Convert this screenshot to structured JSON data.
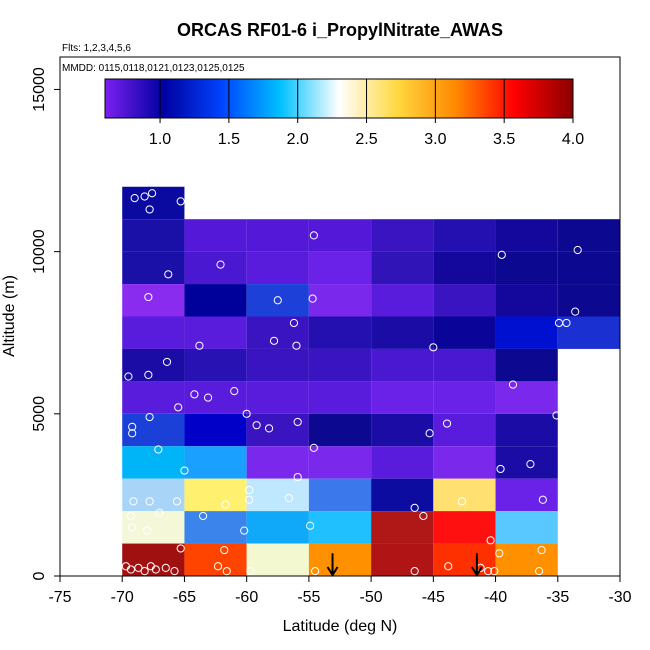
{
  "chart_data": {
    "type": "heatmap",
    "title": "ORCAS RF01-6 i_PropylNitrate_AWAS",
    "flights_label": "Flts: 1,2,3,4,5,6",
    "dates_label": "MMDD: 0115,0118,0121,0123,0125,0125",
    "xlabel": "Latitude (deg N)",
    "ylabel": "Altitude (m)",
    "xlim": [
      -75,
      -30
    ],
    "ylim": [
      0,
      16000
    ],
    "x_ticks": [
      -75,
      -70,
      -65,
      -60,
      -55,
      -50,
      -45,
      -40,
      -35,
      -30
    ],
    "x_tick_labels": [
      "-75",
      "-70",
      "-65",
      "-60",
      "-55",
      "-50",
      "-45",
      "-40",
      "-35",
      "-30"
    ],
    "y_ticks": [
      0,
      5000,
      10000,
      15000
    ],
    "y_tick_labels": [
      "0",
      "5000",
      "10000",
      "15000"
    ],
    "colorbar": {
      "min": 0.6,
      "max": 4.0,
      "ticks": [
        1.0,
        1.5,
        2.0,
        2.5,
        3.0,
        3.5,
        4.0
      ],
      "tick_labels": [
        "1.0",
        "1.5",
        "2.0",
        "2.5",
        "3.0",
        "3.5",
        "4.0"
      ],
      "colors": [
        "#7a20f0",
        "#0000a0",
        "#0044ff",
        "#00c0ff",
        "#ffffff",
        "#ffd840",
        "#ff8800",
        "#ff0000",
        "#8b0000"
      ]
    },
    "cells": [
      {
        "lat0": -70,
        "lat1": -65,
        "alt0": 11000,
        "alt1": 12000,
        "color": "#0a0aa0"
      },
      {
        "lat0": -70,
        "lat1": -65,
        "alt0": 10000,
        "alt1": 11000,
        "color": "#1a10a8"
      },
      {
        "lat0": -65,
        "lat1": -60,
        "alt0": 10000,
        "alt1": 11000,
        "color": "#5318d8"
      },
      {
        "lat0": -60,
        "lat1": -55,
        "alt0": 10000,
        "alt1": 11000,
        "color": "#5318d8"
      },
      {
        "lat0": -55,
        "lat1": -50,
        "alt0": 10000,
        "alt1": 11000,
        "color": "#5318d8"
      },
      {
        "lat0": -50,
        "lat1": -45,
        "alt0": 10000,
        "alt1": 11000,
        "color": "#3a14c0"
      },
      {
        "lat0": -45,
        "lat1": -40,
        "alt0": 10000,
        "alt1": 11000,
        "color": "#2410b0"
      },
      {
        "lat0": -40,
        "lat1": -35,
        "alt0": 10000,
        "alt1": 11000,
        "color": "#14089c"
      },
      {
        "lat0": -35,
        "lat1": -30,
        "alt0": 10000,
        "alt1": 11000,
        "color": "#0c0890"
      },
      {
        "lat0": -70,
        "lat1": -65,
        "alt0": 9000,
        "alt1": 10000,
        "color": "#1a10a8"
      },
      {
        "lat0": -65,
        "lat1": -60,
        "alt0": 9000,
        "alt1": 10000,
        "color": "#4a18d0"
      },
      {
        "lat0": -60,
        "lat1": -55,
        "alt0": 9000,
        "alt1": 10000,
        "color": "#5a1cdc"
      },
      {
        "lat0": -55,
        "lat1": -50,
        "alt0": 9000,
        "alt1": 10000,
        "color": "#6a22e8"
      },
      {
        "lat0": -50,
        "lat1": -45,
        "alt0": 9000,
        "alt1": 10000,
        "color": "#3014b8"
      },
      {
        "lat0": -45,
        "lat1": -40,
        "alt0": 9000,
        "alt1": 10000,
        "color": "#14089c"
      },
      {
        "lat0": -40,
        "lat1": -35,
        "alt0": 9000,
        "alt1": 10000,
        "color": "#0c0890"
      },
      {
        "lat0": -35,
        "lat1": -30,
        "alt0": 9000,
        "alt1": 10000,
        "color": "#0c0890"
      },
      {
        "lat0": -70,
        "lat1": -65,
        "alt0": 8000,
        "alt1": 9000,
        "color": "#8a2cf0"
      },
      {
        "lat0": -65,
        "lat1": -60,
        "alt0": 8000,
        "alt1": 9000,
        "color": "#00009a"
      },
      {
        "lat0": -60,
        "lat1": -55,
        "alt0": 8000,
        "alt1": 9000,
        "color": "#1c40d8"
      },
      {
        "lat0": -55,
        "lat1": -50,
        "alt0": 8000,
        "alt1": 9000,
        "color": "#7a28ec"
      },
      {
        "lat0": -50,
        "lat1": -45,
        "alt0": 8000,
        "alt1": 9000,
        "color": "#5a1cdc"
      },
      {
        "lat0": -45,
        "lat1": -40,
        "alt0": 8000,
        "alt1": 9000,
        "color": "#3a14c0"
      },
      {
        "lat0": -40,
        "lat1": -35,
        "alt0": 8000,
        "alt1": 9000,
        "color": "#14089c"
      },
      {
        "lat0": -35,
        "lat1": -30,
        "alt0": 8000,
        "alt1": 9000,
        "color": "#0c0890"
      },
      {
        "lat0": -70,
        "lat1": -65,
        "alt0": 7000,
        "alt1": 8000,
        "color": "#5a1cdc"
      },
      {
        "lat0": -65,
        "lat1": -60,
        "alt0": 7000,
        "alt1": 8000,
        "color": "#5a1cdc"
      },
      {
        "lat0": -60,
        "lat1": -55,
        "alt0": 7000,
        "alt1": 8000,
        "color": "#3a14c0"
      },
      {
        "lat0": -55,
        "lat1": -50,
        "alt0": 7000,
        "alt1": 8000,
        "color": "#2410b0"
      },
      {
        "lat0": -50,
        "lat1": -45,
        "alt0": 7000,
        "alt1": 8000,
        "color": "#1c0ca6"
      },
      {
        "lat0": -45,
        "lat1": -40,
        "alt0": 7000,
        "alt1": 8000,
        "color": "#0a0498"
      },
      {
        "lat0": -40,
        "lat1": -35,
        "alt0": 7000,
        "alt1": 8000,
        "color": "#0010d0"
      },
      {
        "lat0": -35,
        "lat1": -30,
        "alt0": 7000,
        "alt1": 8000,
        "color": "#1a30d0"
      },
      {
        "lat0": -70,
        "lat1": -65,
        "alt0": 6000,
        "alt1": 7000,
        "color": "#1a0ca4"
      },
      {
        "lat0": -65,
        "lat1": -60,
        "alt0": 6000,
        "alt1": 7000,
        "color": "#2812b4"
      },
      {
        "lat0": -60,
        "lat1": -55,
        "alt0": 6000,
        "alt1": 7000,
        "color": "#3a14c0"
      },
      {
        "lat0": -55,
        "lat1": -50,
        "alt0": 6000,
        "alt1": 7000,
        "color": "#3a14c0"
      },
      {
        "lat0": -50,
        "lat1": -45,
        "alt0": 6000,
        "alt1": 7000,
        "color": "#4a18d0"
      },
      {
        "lat0": -45,
        "lat1": -40,
        "alt0": 6000,
        "alt1": 7000,
        "color": "#4a18d0"
      },
      {
        "lat0": -40,
        "lat1": -35,
        "alt0": 6000,
        "alt1": 7000,
        "color": "#0c0890"
      },
      {
        "lat0": -70,
        "lat1": -65,
        "alt0": 5000,
        "alt1": 6000,
        "color": "#5a1cdc"
      },
      {
        "lat0": -65,
        "lat1": -60,
        "alt0": 5000,
        "alt1": 6000,
        "color": "#5a1cdc"
      },
      {
        "lat0": -60,
        "lat1": -55,
        "alt0": 5000,
        "alt1": 6000,
        "color": "#5a1cdc"
      },
      {
        "lat0": -55,
        "lat1": -50,
        "alt0": 5000,
        "alt1": 6000,
        "color": "#5a1cdc"
      },
      {
        "lat0": -50,
        "lat1": -45,
        "alt0": 5000,
        "alt1": 6000,
        "color": "#6a22e8"
      },
      {
        "lat0": -45,
        "lat1": -40,
        "alt0": 5000,
        "alt1": 6000,
        "color": "#6a22e8"
      },
      {
        "lat0": -40,
        "lat1": -35,
        "alt0": 5000,
        "alt1": 6000,
        "color": "#7a28ec"
      },
      {
        "lat0": -70,
        "lat1": -65,
        "alt0": 4000,
        "alt1": 5000,
        "color": "#1a40d8"
      },
      {
        "lat0": -65,
        "lat1": -60,
        "alt0": 4000,
        "alt1": 5000,
        "color": "#0000c8"
      },
      {
        "lat0": -60,
        "lat1": -55,
        "alt0": 4000,
        "alt1": 5000,
        "color": "#3a14c0"
      },
      {
        "lat0": -55,
        "lat1": -50,
        "alt0": 4000,
        "alt1": 5000,
        "color": "#0c0890"
      },
      {
        "lat0": -50,
        "lat1": -45,
        "alt0": 4000,
        "alt1": 5000,
        "color": "#1a0ca4"
      },
      {
        "lat0": -45,
        "lat1": -40,
        "alt0": 4000,
        "alt1": 5000,
        "color": "#5a1cdc"
      },
      {
        "lat0": -40,
        "lat1": -35,
        "alt0": 4000,
        "alt1": 5000,
        "color": "#1a0ca4"
      },
      {
        "lat0": -70,
        "lat1": -65,
        "alt0": 3000,
        "alt1": 4000,
        "color": "#00b4f8"
      },
      {
        "lat0": -65,
        "lat1": -60,
        "alt0": 3000,
        "alt1": 4000,
        "color": "#1aa0ff"
      },
      {
        "lat0": -60,
        "lat1": -55,
        "alt0": 3000,
        "alt1": 4000,
        "color": "#7a28ec"
      },
      {
        "lat0": -55,
        "lat1": -50,
        "alt0": 3000,
        "alt1": 4000,
        "color": "#7a28ec"
      },
      {
        "lat0": -50,
        "lat1": -45,
        "alt0": 3000,
        "alt1": 4000,
        "color": "#5a1cdc"
      },
      {
        "lat0": -45,
        "lat1": -40,
        "alt0": 3000,
        "alt1": 4000,
        "color": "#7a28ec"
      },
      {
        "lat0": -40,
        "lat1": -35,
        "alt0": 3000,
        "alt1": 4000,
        "color": "#1a0ca4"
      },
      {
        "lat0": -70,
        "lat1": -65,
        "alt0": 2000,
        "alt1": 3000,
        "color": "#a8d4f8"
      },
      {
        "lat0": -65,
        "lat1": -60,
        "alt0": 2000,
        "alt1": 3000,
        "color": "#fff070"
      },
      {
        "lat0": -60,
        "lat1": -55,
        "alt0": 2000,
        "alt1": 3000,
        "color": "#bfe8ff"
      },
      {
        "lat0": -55,
        "lat1": -50,
        "alt0": 2000,
        "alt1": 3000,
        "color": "#3a78ec"
      },
      {
        "lat0": -50,
        "lat1": -45,
        "alt0": 2000,
        "alt1": 3000,
        "color": "#0c0ca0"
      },
      {
        "lat0": -45,
        "lat1": -40,
        "alt0": 2000,
        "alt1": 3000,
        "color": "#ffe070"
      },
      {
        "lat0": -40,
        "lat1": -35,
        "alt0": 2000,
        "alt1": 3000,
        "color": "#6a22e8"
      },
      {
        "lat0": -70,
        "lat1": -65,
        "alt0": 1000,
        "alt1": 2000,
        "color": "#f4f8d8"
      },
      {
        "lat0": -65,
        "lat1": -60,
        "alt0": 1000,
        "alt1": 2000,
        "color": "#3a84ec"
      },
      {
        "lat0": -60,
        "lat1": -55,
        "alt0": 1000,
        "alt1": 2000,
        "color": "#10a8f8"
      },
      {
        "lat0": -55,
        "lat1": -50,
        "alt0": 1000,
        "alt1": 2000,
        "color": "#20c0ff"
      },
      {
        "lat0": -50,
        "lat1": -45,
        "alt0": 1000,
        "alt1": 2000,
        "color": "#b01818"
      },
      {
        "lat0": -45,
        "lat1": -40,
        "alt0": 1000,
        "alt1": 2000,
        "color": "#ff1010"
      },
      {
        "lat0": -40,
        "lat1": -35,
        "alt0": 1000,
        "alt1": 2000,
        "color": "#58c8ff"
      },
      {
        "lat0": -70,
        "lat1": -65,
        "alt0": 0,
        "alt1": 1000,
        "color": "#a01010"
      },
      {
        "lat0": -65,
        "lat1": -60,
        "alt0": 0,
        "alt1": 1000,
        "color": "#ff4400"
      },
      {
        "lat0": -60,
        "lat1": -55,
        "alt0": 0,
        "alt1": 1000,
        "color": "#f4f8d0"
      },
      {
        "lat0": -55,
        "lat1": -50,
        "alt0": 0,
        "alt1": 1000,
        "color": "#ff9000"
      },
      {
        "lat0": -50,
        "lat1": -45,
        "alt0": 0,
        "alt1": 1000,
        "color": "#b01414"
      },
      {
        "lat0": -45,
        "lat1": -40,
        "alt0": 0,
        "alt1": 1000,
        "color": "#ff3000"
      },
      {
        "lat0": -40,
        "lat1": -35,
        "alt0": 0,
        "alt1": 1000,
        "color": "#ff9000"
      }
    ],
    "samples": [
      {
        "lat": -68.2,
        "alt": 11700
      },
      {
        "lat": -67.6,
        "alt": 11800
      },
      {
        "lat": -69.0,
        "alt": 11650
      },
      {
        "lat": -67.8,
        "alt": 11300
      },
      {
        "lat": -65.3,
        "alt": 11550
      },
      {
        "lat": -54.6,
        "alt": 10500
      },
      {
        "lat": -66.3,
        "alt": 9300
      },
      {
        "lat": -62.1,
        "alt": 9600
      },
      {
        "lat": -39.5,
        "alt": 9900
      },
      {
        "lat": -33.4,
        "alt": 10050
      },
      {
        "lat": -67.9,
        "alt": 8600
      },
      {
        "lat": -57.5,
        "alt": 8500
      },
      {
        "lat": -54.7,
        "alt": 8550
      },
      {
        "lat": -33.6,
        "alt": 8150
      },
      {
        "lat": -34.3,
        "alt": 7800
      },
      {
        "lat": -34.9,
        "alt": 7800
      },
      {
        "lat": -56.2,
        "alt": 7800
      },
      {
        "lat": -57.8,
        "alt": 7250
      },
      {
        "lat": -56.0,
        "alt": 7100
      },
      {
        "lat": -63.8,
        "alt": 7100
      },
      {
        "lat": -45.0,
        "alt": 7050
      },
      {
        "lat": -67.9,
        "alt": 6200
      },
      {
        "lat": -69.5,
        "alt": 6150
      },
      {
        "lat": -66.4,
        "alt": 6600
      },
      {
        "lat": -64.2,
        "alt": 5600
      },
      {
        "lat": -63.1,
        "alt": 5500
      },
      {
        "lat": -61.0,
        "alt": 5700
      },
      {
        "lat": -65.5,
        "alt": 5200
      },
      {
        "lat": -38.6,
        "alt": 5900
      },
      {
        "lat": -67.8,
        "alt": 4900
      },
      {
        "lat": -60.0,
        "alt": 5000
      },
      {
        "lat": -35.1,
        "alt": 4950
      },
      {
        "lat": -69.2,
        "alt": 4600
      },
      {
        "lat": -69.2,
        "alt": 4400
      },
      {
        "lat": -59.2,
        "alt": 4650
      },
      {
        "lat": -58.2,
        "alt": 4550
      },
      {
        "lat": -55.9,
        "alt": 4750
      },
      {
        "lat": -43.9,
        "alt": 4700
      },
      {
        "lat": -45.3,
        "alt": 4400
      },
      {
        "lat": -67.1,
        "alt": 3900
      },
      {
        "lat": -54.6,
        "alt": 3950
      },
      {
        "lat": -65.0,
        "alt": 3250
      },
      {
        "lat": -55.9,
        "alt": 3050
      },
      {
        "lat": -39.6,
        "alt": 3300
      },
      {
        "lat": -37.2,
        "alt": 3450
      },
      {
        "lat": -59.8,
        "alt": 2650
      },
      {
        "lat": -59.8,
        "alt": 2350
      },
      {
        "lat": -56.6,
        "alt": 2400
      },
      {
        "lat": -69.1,
        "alt": 2300
      },
      {
        "lat": -67.8,
        "alt": 2300
      },
      {
        "lat": -65.6,
        "alt": 2300
      },
      {
        "lat": -61.7,
        "alt": 2200
      },
      {
        "lat": -42.7,
        "alt": 2300
      },
      {
        "lat": -36.2,
        "alt": 2350
      },
      {
        "lat": -69.3,
        "alt": 1850
      },
      {
        "lat": -67.0,
        "alt": 1950
      },
      {
        "lat": -63.5,
        "alt": 1850
      },
      {
        "lat": -46.5,
        "alt": 2100
      },
      {
        "lat": -45.8,
        "alt": 1850
      },
      {
        "lat": -69.2,
        "alt": 1500
      },
      {
        "lat": -68.0,
        "alt": 1400
      },
      {
        "lat": -60.2,
        "alt": 1400
      },
      {
        "lat": -54.9,
        "alt": 1550
      },
      {
        "lat": -65.3,
        "alt": 850
      },
      {
        "lat": -61.8,
        "alt": 800
      },
      {
        "lat": -40.4,
        "alt": 1100
      },
      {
        "lat": -39.7,
        "alt": 700
      },
      {
        "lat": -36.3,
        "alt": 800
      },
      {
        "lat": -69.7,
        "alt": 300
      },
      {
        "lat": -69.3,
        "alt": 200
      },
      {
        "lat": -68.7,
        "alt": 250
      },
      {
        "lat": -68.2,
        "alt": 150
      },
      {
        "lat": -67.7,
        "alt": 300
      },
      {
        "lat": -67.3,
        "alt": 200
      },
      {
        "lat": -66.5,
        "alt": 250
      },
      {
        "lat": -65.8,
        "alt": 150
      },
      {
        "lat": -62.3,
        "alt": 300
      },
      {
        "lat": -61.6,
        "alt": 150
      },
      {
        "lat": -59.7,
        "alt": 150
      },
      {
        "lat": -54.5,
        "alt": 150
      },
      {
        "lat": -46.5,
        "alt": 150
      },
      {
        "lat": -43.8,
        "alt": 300
      },
      {
        "lat": -41.2,
        "alt": 250
      },
      {
        "lat": -40.6,
        "alt": 150
      },
      {
        "lat": -40.1,
        "alt": 150
      },
      {
        "lat": -36.5,
        "alt": 150
      }
    ],
    "markers": [
      {
        "type": "arrow-down",
        "lat": -53.1,
        "alt_top": 700,
        "alt_bottom": 0
      },
      {
        "type": "arrow-down",
        "lat": -41.5,
        "alt_top": 700,
        "alt_bottom": 0
      }
    ]
  }
}
